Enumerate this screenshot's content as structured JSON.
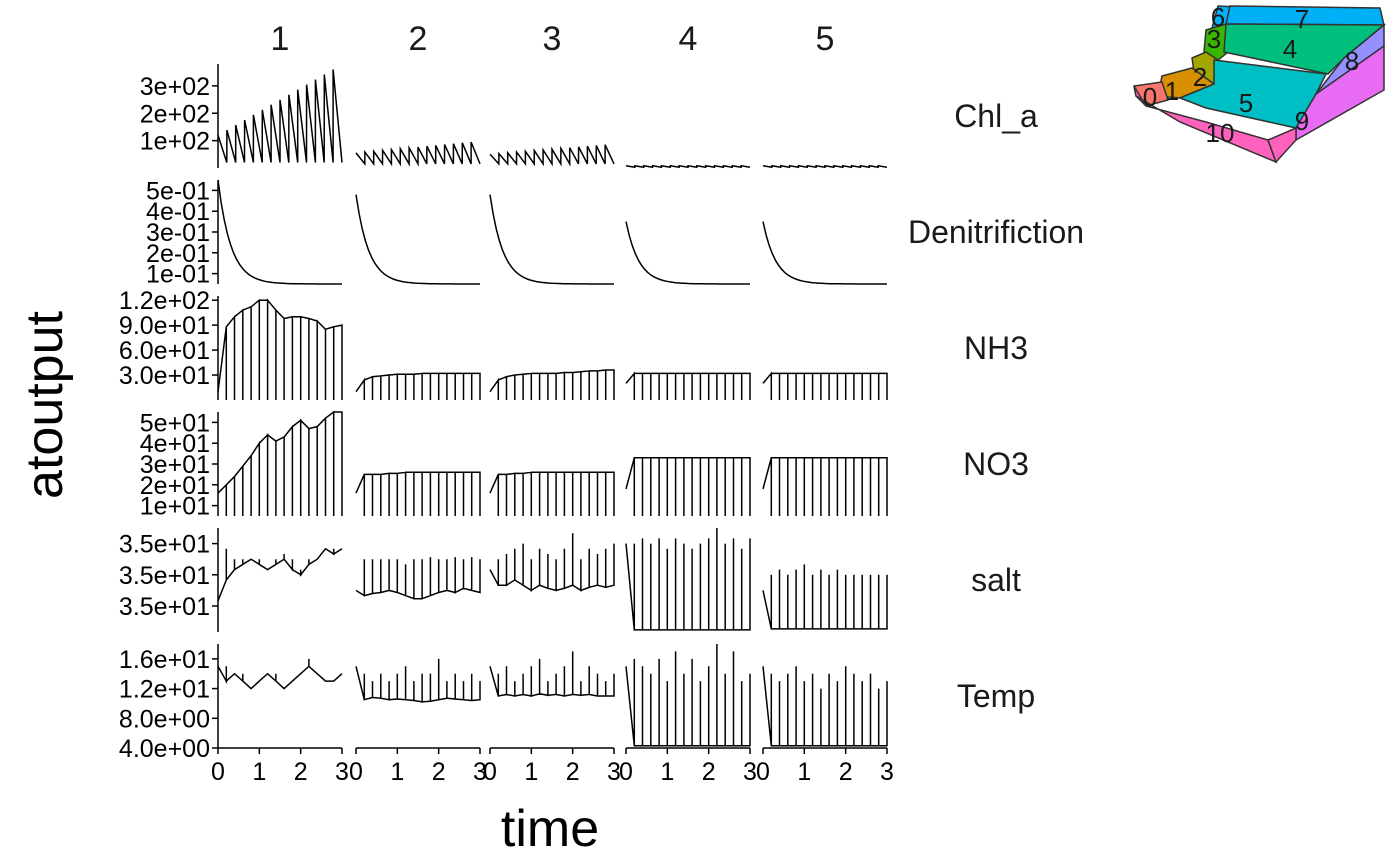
{
  "chart_data": {
    "type": "line",
    "facet_layout": "grid",
    "xlabel": "time",
    "ylabel": "atoutput",
    "xlim": [
      0,
      3
    ],
    "x_ticks": [
      "0",
      "1",
      "2",
      "3"
    ],
    "columns": [
      "1",
      "2",
      "3",
      "4",
      "5"
    ],
    "rows": [
      {
        "name": "Chl_a",
        "ylim": [
          0,
          380
        ],
        "ticks": [
          {
            "v": 100,
            "label": "1e+02"
          },
          {
            "v": 200,
            "label": "2e+02"
          },
          {
            "v": 300,
            "label": "3e+02"
          }
        ],
        "pattern": "sawtooth",
        "panels": [
          {
            "low": 20,
            "start": 120,
            "end": 360
          },
          {
            "low": 15,
            "start": 55,
            "end": 95
          },
          {
            "low": 15,
            "start": 50,
            "end": 85
          },
          {
            "low": 3,
            "start": 8,
            "end": 8
          },
          {
            "low": 3,
            "start": 8,
            "end": 8
          }
        ]
      },
      {
        "name": "Denitrifiction",
        "ylim": [
          0.05,
          0.55
        ],
        "ticks": [
          {
            "v": 0.1,
            "label": "1e-01"
          },
          {
            "v": 0.2,
            "label": "2e-01"
          },
          {
            "v": 0.3,
            "label": "3e-01"
          },
          {
            "v": 0.4,
            "label": "4e-01"
          },
          {
            "v": 0.5,
            "label": "5e-01"
          }
        ],
        "pattern": "decay",
        "panels": [
          {
            "start": 0.55,
            "end": 0.05
          },
          {
            "start": 0.48,
            "end": 0.05
          },
          {
            "start": 0.48,
            "end": 0.05
          },
          {
            "start": 0.35,
            "end": 0.05
          },
          {
            "start": 0.35,
            "end": 0.05
          }
        ]
      },
      {
        "name": "NH3",
        "ylim": [
          0,
          125
        ],
        "ticks": [
          {
            "v": 30,
            "label": "3.0e+01"
          },
          {
            "v": 60,
            "label": "6.0e+01"
          },
          {
            "v": 90,
            "label": "9.0e+01"
          },
          {
            "v": 120,
            "label": "1.2e+02"
          }
        ],
        "pattern": "line-drop",
        "panels": [
          {
            "series": [
              10,
              88,
              100,
              108,
              112,
              120,
              120,
              108,
              98,
              100,
              100,
              98,
              95,
              85,
              88,
              90
            ],
            "low": 0
          },
          {
            "series": [
              10,
              24,
              28,
              29,
              30,
              31,
              31,
              31,
              32,
              32,
              32,
              32,
              32,
              32,
              32,
              32
            ],
            "low": 0
          },
          {
            "series": [
              10,
              24,
              28,
              30,
              31,
              32,
              32,
              32,
              32,
              33,
              33,
              34,
              35,
              35,
              36,
              36
            ],
            "low": 0
          },
          {
            "series": [
              20,
              32,
              32,
              32,
              32,
              32,
              32,
              32,
              32,
              32,
              32,
              32,
              32,
              32,
              32,
              32
            ],
            "low": 0
          },
          {
            "series": [
              20,
              32,
              32,
              32,
              32,
              32,
              32,
              32,
              32,
              32,
              32,
              32,
              32,
              32,
              32,
              32
            ],
            "low": 0
          }
        ]
      },
      {
        "name": "NO3",
        "ylim": [
          5,
          55
        ],
        "ticks": [
          {
            "v": 10,
            "label": "1e+01"
          },
          {
            "v": 20,
            "label": "2e+01"
          },
          {
            "v": 30,
            "label": "3e+01"
          },
          {
            "v": 40,
            "label": "4e+01"
          },
          {
            "v": 50,
            "label": "5e+01"
          }
        ],
        "pattern": "line-drop",
        "panels": [
          {
            "series": [
              16,
              20,
              24,
              29,
              34,
              40,
              44,
              41,
              43,
              48,
              51,
              47,
              48,
              52,
              55,
              55
            ],
            "low": 5
          },
          {
            "series": [
              16,
              25,
              25,
              25,
              25.5,
              25.5,
              26,
              26,
              26,
              26,
              26,
              26,
              26,
              26,
              26,
              26
            ],
            "low": 5
          },
          {
            "series": [
              16,
              25,
              25,
              25.5,
              25.5,
              26,
              26,
              26,
              26,
              26,
              26,
              26,
              26,
              26,
              26,
              26
            ],
            "low": 5
          },
          {
            "series": [
              18,
              33,
              33,
              33,
              33,
              33,
              33,
              33,
              33,
              33,
              33,
              33,
              33,
              33,
              33,
              33
            ],
            "low": 5
          },
          {
            "series": [
              18,
              33,
              33,
              33,
              33,
              33,
              33,
              33,
              33,
              33,
              33,
              33,
              33,
              33,
              33,
              33
            ],
            "low": 5
          }
        ]
      },
      {
        "name": "salt",
        "ylim": [
          34.9,
          35.9
        ],
        "ticks": [
          {
            "v": 35.15,
            "label": "3.5e+01"
          },
          {
            "v": 35.45,
            "label": "3.5e+01"
          },
          {
            "v": 35.75,
            "label": "3.5e+01"
          }
        ],
        "pattern": "line-spike",
        "panels": [
          {
            "series": [
              35.2,
              35.4,
              35.5,
              35.55,
              35.6,
              35.55,
              35.5,
              35.55,
              35.6,
              35.5,
              35.45,
              35.55,
              35.6,
              35.7,
              35.65,
              35.7
            ],
            "spikes": [
              35.6,
              35.7,
              35.6,
              35.6,
              35.4,
              35.6,
              35.4,
              35.6,
              35.65,
              35.6,
              35.5,
              35.6,
              35.6,
              35.7,
              35.7,
              35.7
            ]
          },
          {
            "series": [
              35.3,
              35.25,
              35.27,
              35.28,
              35.3,
              35.28,
              35.25,
              35.22,
              35.22,
              35.25,
              35.28,
              35.3,
              35.28,
              35.32,
              35.3,
              35.28
            ],
            "spikes": [
              35.55,
              35.6,
              35.6,
              35.6,
              35.6,
              35.6,
              35.55,
              35.6,
              35.6,
              35.62,
              35.6,
              35.6,
              35.62,
              35.6,
              35.62,
              35.6
            ]
          },
          {
            "series": [
              35.5,
              35.35,
              35.35,
              35.4,
              35.35,
              35.3,
              35.35,
              35.32,
              35.3,
              35.32,
              35.35,
              35.3,
              35.33,
              35.35,
              35.33,
              35.35
            ],
            "spikes": [
              35.7,
              35.6,
              35.65,
              35.7,
              35.75,
              35.6,
              35.7,
              35.65,
              35.6,
              35.7,
              35.85,
              35.6,
              35.7,
              35.65,
              35.7,
              35.75
            ]
          },
          {
            "series": [
              35.75,
              34.92,
              34.92,
              34.92,
              34.92,
              34.92,
              34.92,
              34.92,
              34.92,
              34.92,
              34.92,
              34.92,
              34.92,
              34.92,
              34.92,
              34.92
            ],
            "spikes": [
              35.75,
              35.75,
              35.8,
              35.75,
              35.8,
              35.7,
              35.8,
              35.75,
              35.7,
              35.75,
              35.8,
              35.9,
              35.75,
              35.8,
              35.7,
              35.8
            ]
          },
          {
            "series": [
              35.3,
              34.93,
              34.93,
              34.93,
              34.93,
              34.93,
              34.93,
              34.93,
              34.93,
              34.93,
              34.93,
              34.93,
              34.93,
              34.93,
              34.93,
              34.93
            ],
            "spikes": [
              35.3,
              35.45,
              35.5,
              35.45,
              35.5,
              35.55,
              35.45,
              35.5,
              35.45,
              35.5,
              35.45,
              35.45,
              35.45,
              35.45,
              35.45,
              35.45
            ]
          }
        ]
      },
      {
        "name": "Temp",
        "ylim": [
          4,
          18
        ],
        "ticks": [
          {
            "v": 4,
            "label": "4.0e+00"
          },
          {
            "v": 8,
            "label": "8.0e+00"
          },
          {
            "v": 12,
            "label": "1.2e+01"
          },
          {
            "v": 16,
            "label": "1.6e+01"
          }
        ],
        "pattern": "line-spike",
        "panels": [
          {
            "series": [
              15,
              13,
              14,
              13,
              12,
              13,
              14,
              13,
              12,
              13,
              14,
              15,
              14,
              13,
              13,
              14
            ],
            "spikes": [
              15,
              15,
              14,
              14,
              12,
              13,
              14,
              14,
              12,
              13,
              14,
              16,
              14,
              13,
              13,
              14
            ]
          },
          {
            "series": [
              15,
              10.5,
              10.8,
              10.7,
              10.5,
              10.6,
              10.5,
              10.4,
              10.2,
              10.3,
              10.5,
              10.7,
              10.6,
              10.5,
              10.4,
              10.5
            ],
            "spikes": [
              15,
              14,
              13,
              14,
              13,
              14,
              15,
              13,
              14,
              14,
              16,
              13,
              14,
              13,
              14,
              13
            ]
          },
          {
            "series": [
              15,
              11,
              11.2,
              11,
              11.2,
              11,
              11.3,
              11.1,
              11.2,
              11,
              11.2,
              11.1,
              11.2,
              11,
              11,
              11
            ],
            "spikes": [
              15,
              14,
              15,
              13,
              14,
              15,
              16,
              13,
              14,
              15,
              17,
              13,
              15,
              14,
              13,
              14
            ]
          },
          {
            "series": [
              15,
              4.3,
              4.3,
              4.3,
              4.3,
              4.3,
              4.3,
              4.3,
              4.3,
              4.3,
              4.3,
              4.3,
              4.3,
              4.3,
              4.3,
              4.3
            ],
            "spikes": [
              15,
              16,
              15,
              14,
              16,
              13,
              17,
              14,
              16,
              13,
              15,
              18,
              14,
              17,
              13,
              14
            ]
          },
          {
            "series": [
              15,
              4.3,
              4.3,
              4.3,
              4.3,
              4.3,
              4.3,
              4.3,
              4.3,
              4.3,
              4.3,
              4.3,
              4.3,
              4.3,
              4.3,
              4.3
            ],
            "spikes": [
              15,
              14,
              13,
              14,
              15,
              13,
              14,
              12,
              14,
              13,
              15,
              14,
              13,
              14,
              12,
              13
            ]
          }
        ]
      }
    ]
  },
  "inset_map": {
    "boxes": [
      {
        "id": "0",
        "color": "#F8766D"
      },
      {
        "id": "1",
        "color": "#D89000"
      },
      {
        "id": "2",
        "color": "#A3A500"
      },
      {
        "id": "3",
        "color": "#39B600"
      },
      {
        "id": "4",
        "color": "#00BF7D"
      },
      {
        "id": "5",
        "color": "#00BFC4"
      },
      {
        "id": "6",
        "color": "#00B0F6"
      },
      {
        "id": "7",
        "color": "#00B0F6"
      },
      {
        "id": "8",
        "color": "#9590FF"
      },
      {
        "id": "9",
        "color": "#E76BF3"
      },
      {
        "id": "10",
        "color": "#FF62BC"
      }
    ]
  }
}
